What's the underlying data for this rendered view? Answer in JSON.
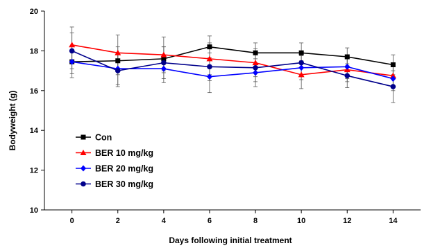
{
  "chart_data": {
    "type": "line",
    "xlabel": "Days following initial treatment",
    "ylabel": "Bodyweight (g)",
    "x": [
      0,
      2,
      4,
      6,
      8,
      10,
      12,
      14
    ],
    "xticks": [
      "0",
      "2",
      "4",
      "6",
      "8",
      "10",
      "12",
      "14"
    ],
    "yticks": [
      "10",
      "12",
      "14",
      "16",
      "18",
      "20"
    ],
    "xlim": [
      -1.2,
      15.2
    ],
    "ylim": [
      10,
      20
    ],
    "grid": false,
    "legend_position": "bottom-left",
    "series": [
      {
        "name": "Con",
        "color": "#000000",
        "marker": "square",
        "values": [
          17.45,
          17.5,
          17.6,
          18.2,
          17.9,
          17.9,
          17.7,
          17.3
        ],
        "errors": [
          0.8,
          0.7,
          0.6,
          0.55,
          0.5,
          0.5,
          0.45,
          0.5
        ]
      },
      {
        "name": "BER 10 mg/kg",
        "color": "#ff0000",
        "marker": "triangle",
        "values": [
          18.3,
          17.9,
          17.8,
          17.6,
          17.4,
          16.8,
          17.05,
          16.75
        ],
        "errors": [
          0.9,
          0.9,
          0.9,
          0.8,
          0.7,
          0.7,
          0.6,
          0.6
        ]
      },
      {
        "name": "BER 20 mg/kg",
        "color": "#0000ff",
        "marker": "diamond",
        "values": [
          17.45,
          17.1,
          17.1,
          16.7,
          16.9,
          17.15,
          17.2,
          16.6
        ],
        "errors": [
          0.6,
          0.8,
          0.7,
          0.8,
          0.7,
          0.6,
          0.6,
          0.6
        ]
      },
      {
        "name": "BER 30 mg/kg",
        "color": "#00008b",
        "marker": "circle",
        "values": [
          18.0,
          17.0,
          17.4,
          17.2,
          17.15,
          17.4,
          16.75,
          16.2
        ],
        "errors": [
          0.9,
          0.8,
          0.8,
          0.7,
          0.7,
          0.6,
          0.6,
          0.8
        ]
      }
    ]
  }
}
